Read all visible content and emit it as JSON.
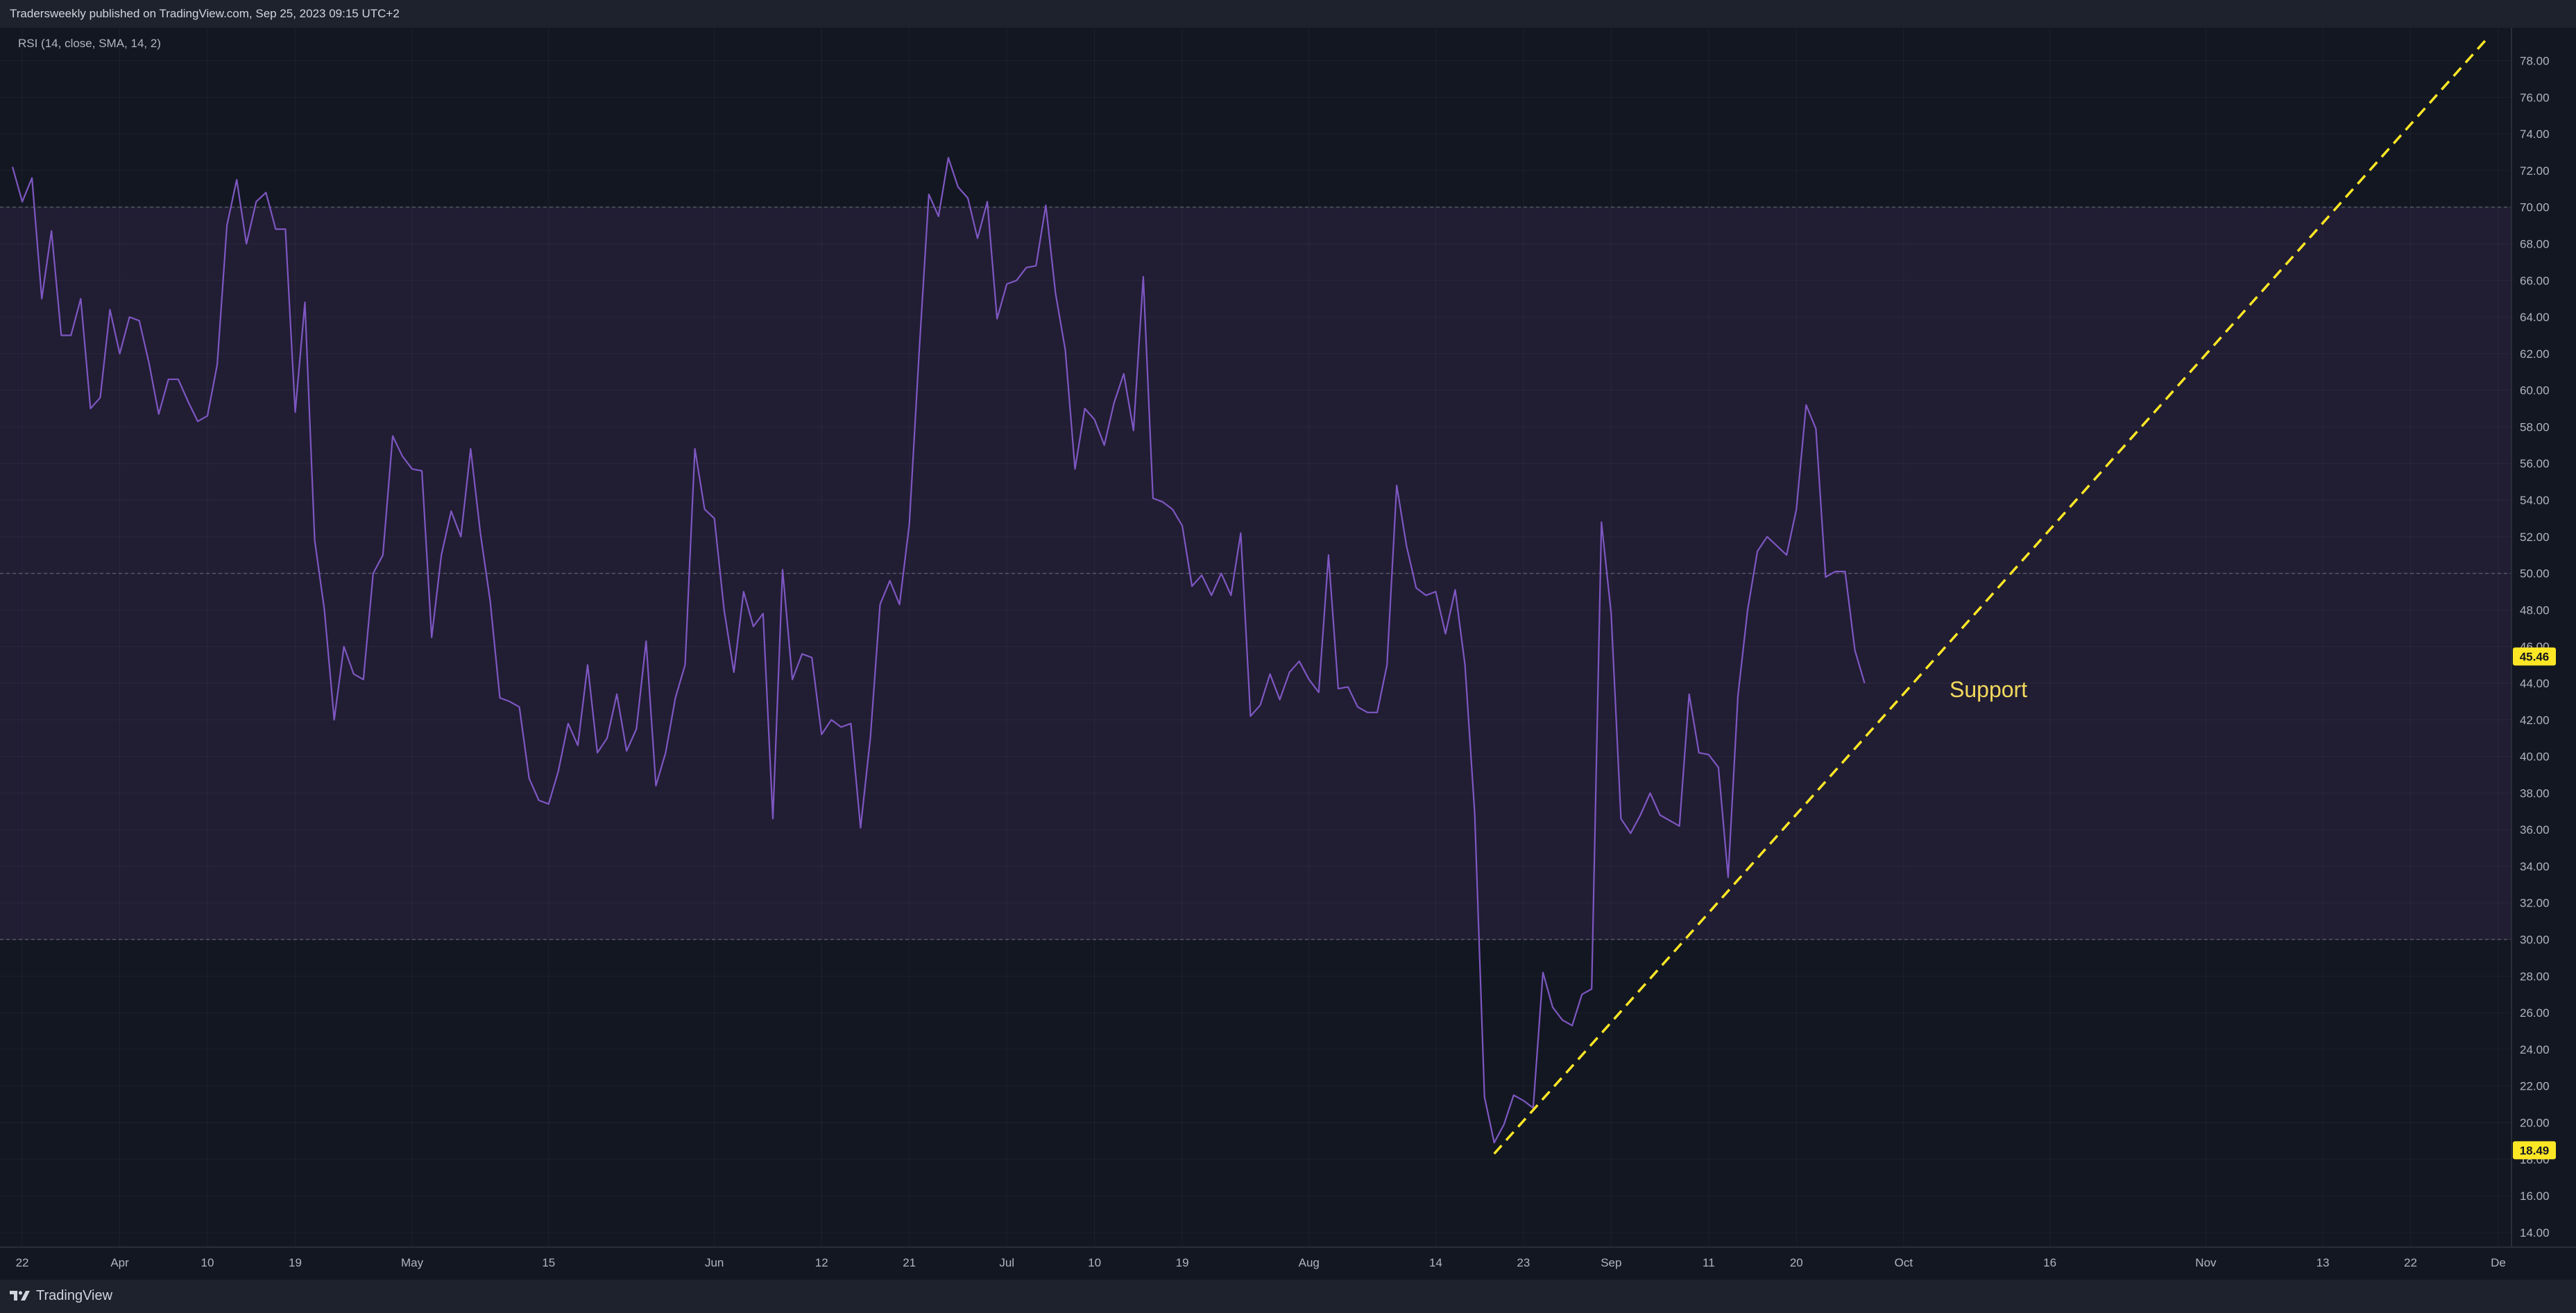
{
  "header": {
    "publish_info": "Tradersweekly published on TradingView.com, Sep 25, 2023 09:15 UTC+2"
  },
  "footer": {
    "brand": "TradingView",
    "logo_icon": "tradingview-logo-icon"
  },
  "colors": {
    "background": "#131722",
    "band_fill": "#211d33",
    "rsi_line": "#7e57c2",
    "trendline": "#fde725",
    "axis_text": "#b2b5be",
    "price_label_bg": "#fde725"
  },
  "chart_data": {
    "type": "line",
    "title": "RSI (14, close, SMA, 14, 2)",
    "y_axis": {
      "min": 13.2,
      "max": 79.8,
      "ticks": [
        "78.00",
        "76.00",
        "74.00",
        "72.00",
        "70.00",
        "68.00",
        "66.00",
        "64.00",
        "62.00",
        "60.00",
        "58.00",
        "56.00",
        "54.00",
        "52.00",
        "50.00",
        "48.00",
        "46.00",
        "44.00",
        "42.00",
        "40.00",
        "38.00",
        "36.00",
        "34.00",
        "32.00",
        "30.00",
        "28.00",
        "26.00",
        "24.00",
        "22.00",
        "20.00",
        "18.00",
        "16.00",
        "14.00"
      ]
    },
    "x_axis": {
      "start_date": "2023-03-21",
      "end_date": "2023-12-02",
      "ticks": [
        {
          "label": "22",
          "date": "2023-03-22"
        },
        {
          "label": "Apr",
          "date": "2023-04-01"
        },
        {
          "label": "10",
          "date": "2023-04-10"
        },
        {
          "label": "19",
          "date": "2023-04-19"
        },
        {
          "label": "May",
          "date": "2023-05-01"
        },
        {
          "label": "15",
          "date": "2023-05-15"
        },
        {
          "label": "Jun",
          "date": "2023-06-01"
        },
        {
          "label": "12",
          "date": "2023-06-12"
        },
        {
          "label": "21",
          "date": "2023-06-21"
        },
        {
          "label": "Jul",
          "date": "2023-07-01"
        },
        {
          "label": "10",
          "date": "2023-07-10"
        },
        {
          "label": "19",
          "date": "2023-07-19"
        },
        {
          "label": "Aug",
          "date": "2023-08-01"
        },
        {
          "label": "14",
          "date": "2023-08-14"
        },
        {
          "label": "23",
          "date": "2023-08-23"
        },
        {
          "label": "Sep",
          "date": "2023-09-01"
        },
        {
          "label": "11",
          "date": "2023-09-11"
        },
        {
          "label": "20",
          "date": "2023-09-20"
        },
        {
          "label": "Oct",
          "date": "2023-10-01"
        },
        {
          "label": "16",
          "date": "2023-10-16"
        },
        {
          "label": "Nov",
          "date": "2023-11-01"
        },
        {
          "label": "13",
          "date": "2023-11-13"
        },
        {
          "label": "22",
          "date": "2023-11-22"
        },
        {
          "label": "De",
          "date": "2023-12-01"
        }
      ]
    },
    "grid": true,
    "bands": {
      "upper": 70,
      "middle": 50,
      "lower": 30
    },
    "series": [
      {
        "name": "RSI",
        "points": [
          [
            "2023-03-21",
            72.2
          ],
          [
            "2023-03-22",
            70.3
          ],
          [
            "2023-03-23",
            71.6
          ],
          [
            "2023-03-24",
            65.0
          ],
          [
            "2023-03-25",
            68.7
          ],
          [
            "2023-03-26",
            63.0
          ],
          [
            "2023-03-27",
            63.0
          ],
          [
            "2023-03-28",
            65.0
          ],
          [
            "2023-03-29",
            59.0
          ],
          [
            "2023-03-30",
            59.6
          ],
          [
            "2023-03-31",
            64.4
          ],
          [
            "2023-04-01",
            62.0
          ],
          [
            "2023-04-02",
            64.0
          ],
          [
            "2023-04-03",
            63.8
          ],
          [
            "2023-04-04",
            61.5
          ],
          [
            "2023-04-05",
            58.7
          ],
          [
            "2023-04-06",
            60.6
          ],
          [
            "2023-04-07",
            60.6
          ],
          [
            "2023-04-08",
            59.4
          ],
          [
            "2023-04-09",
            58.3
          ],
          [
            "2023-04-10",
            58.6
          ],
          [
            "2023-04-11",
            61.4
          ],
          [
            "2023-04-12",
            69.0
          ],
          [
            "2023-04-13",
            71.5
          ],
          [
            "2023-04-14",
            68.0
          ],
          [
            "2023-04-15",
            70.3
          ],
          [
            "2023-04-16",
            70.8
          ],
          [
            "2023-04-17",
            68.8
          ],
          [
            "2023-04-18",
            68.8
          ],
          [
            "2023-04-19",
            58.8
          ],
          [
            "2023-04-20",
            64.8
          ],
          [
            "2023-04-21",
            51.8
          ],
          [
            "2023-04-22",
            48.0
          ],
          [
            "2023-04-23",
            42.0
          ],
          [
            "2023-04-24",
            46.0
          ],
          [
            "2023-04-25",
            44.5
          ],
          [
            "2023-04-26",
            44.2
          ],
          [
            "2023-04-27",
            50.0
          ],
          [
            "2023-04-28",
            51.0
          ],
          [
            "2023-04-29",
            57.5
          ],
          [
            "2023-04-30",
            56.4
          ],
          [
            "2023-05-01",
            55.7
          ],
          [
            "2023-05-02",
            55.6
          ],
          [
            "2023-05-03",
            46.5
          ],
          [
            "2023-05-04",
            51.0
          ],
          [
            "2023-05-05",
            53.4
          ],
          [
            "2023-05-06",
            52.0
          ],
          [
            "2023-05-07",
            56.8
          ],
          [
            "2023-05-08",
            52.2
          ],
          [
            "2023-05-09",
            48.5
          ],
          [
            "2023-05-10",
            43.2
          ],
          [
            "2023-05-11",
            43.0
          ],
          [
            "2023-05-12",
            42.7
          ],
          [
            "2023-05-13",
            38.8
          ],
          [
            "2023-05-14",
            37.6
          ],
          [
            "2023-05-15",
            37.4
          ],
          [
            "2023-05-16",
            39.2
          ],
          [
            "2023-05-17",
            41.8
          ],
          [
            "2023-05-18",
            40.6
          ],
          [
            "2023-05-19",
            45.0
          ],
          [
            "2023-05-20",
            40.2
          ],
          [
            "2023-05-21",
            41.0
          ],
          [
            "2023-05-22",
            43.4
          ],
          [
            "2023-05-23",
            40.3
          ],
          [
            "2023-05-24",
            41.5
          ],
          [
            "2023-05-25",
            46.3
          ],
          [
            "2023-05-26",
            38.4
          ],
          [
            "2023-05-27",
            40.2
          ],
          [
            "2023-05-28",
            43.2
          ],
          [
            "2023-05-29",
            45.0
          ],
          [
            "2023-05-30",
            56.8
          ],
          [
            "2023-05-31",
            53.5
          ],
          [
            "2023-06-01",
            53.0
          ],
          [
            "2023-06-02",
            48.0
          ],
          [
            "2023-06-03",
            44.6
          ],
          [
            "2023-06-04",
            49.0
          ],
          [
            "2023-06-05",
            47.1
          ],
          [
            "2023-06-06",
            47.8
          ],
          [
            "2023-06-07",
            36.6
          ],
          [
            "2023-06-08",
            50.2
          ],
          [
            "2023-06-09",
            44.2
          ],
          [
            "2023-06-10",
            45.6
          ],
          [
            "2023-06-11",
            45.4
          ],
          [
            "2023-06-12",
            41.2
          ],
          [
            "2023-06-13",
            42.0
          ],
          [
            "2023-06-14",
            41.6
          ],
          [
            "2023-06-15",
            41.8
          ],
          [
            "2023-06-16",
            36.1
          ],
          [
            "2023-06-17",
            41.0
          ],
          [
            "2023-06-18",
            48.3
          ],
          [
            "2023-06-19",
            49.6
          ],
          [
            "2023-06-20",
            48.3
          ],
          [
            "2023-06-21",
            52.7
          ],
          [
            "2023-06-22",
            62.0
          ],
          [
            "2023-06-23",
            70.7
          ],
          [
            "2023-06-24",
            69.5
          ],
          [
            "2023-06-25",
            72.7
          ],
          [
            "2023-06-26",
            71.1
          ],
          [
            "2023-06-27",
            70.5
          ],
          [
            "2023-06-28",
            68.3
          ],
          [
            "2023-06-29",
            70.3
          ],
          [
            "2023-06-30",
            63.9
          ],
          [
            "2023-07-01",
            65.8
          ],
          [
            "2023-07-02",
            66.0
          ],
          [
            "2023-07-03",
            66.7
          ],
          [
            "2023-07-04",
            66.8
          ],
          [
            "2023-07-05",
            70.1
          ],
          [
            "2023-07-06",
            65.3
          ],
          [
            "2023-07-07",
            62.2
          ],
          [
            "2023-07-08",
            55.7
          ],
          [
            "2023-07-09",
            59.0
          ],
          [
            "2023-07-10",
            58.4
          ],
          [
            "2023-07-11",
            57.0
          ],
          [
            "2023-07-12",
            59.3
          ],
          [
            "2023-07-13",
            60.9
          ],
          [
            "2023-07-14",
            57.8
          ],
          [
            "2023-07-15",
            66.2
          ],
          [
            "2023-07-16",
            54.1
          ],
          [
            "2023-07-17",
            53.9
          ],
          [
            "2023-07-18",
            53.5
          ],
          [
            "2023-07-19",
            52.6
          ],
          [
            "2023-07-20",
            49.3
          ],
          [
            "2023-07-21",
            49.9
          ],
          [
            "2023-07-22",
            48.8
          ],
          [
            "2023-07-23",
            50.0
          ],
          [
            "2023-07-24",
            48.8
          ],
          [
            "2023-07-25",
            52.2
          ],
          [
            "2023-07-26",
            42.2
          ],
          [
            "2023-07-27",
            42.8
          ],
          [
            "2023-07-28",
            44.5
          ],
          [
            "2023-07-29",
            43.1
          ],
          [
            "2023-07-30",
            44.6
          ],
          [
            "2023-07-31",
            45.2
          ],
          [
            "2023-08-01",
            44.2
          ],
          [
            "2023-08-02",
            43.5
          ],
          [
            "2023-08-03",
            51.0
          ],
          [
            "2023-08-04",
            43.7
          ],
          [
            "2023-08-05",
            43.8
          ],
          [
            "2023-08-06",
            42.7
          ],
          [
            "2023-08-07",
            42.4
          ],
          [
            "2023-08-08",
            42.4
          ],
          [
            "2023-08-09",
            45.0
          ],
          [
            "2023-08-10",
            54.8
          ],
          [
            "2023-08-11",
            51.5
          ],
          [
            "2023-08-12",
            49.2
          ],
          [
            "2023-08-13",
            48.8
          ],
          [
            "2023-08-14",
            49.0
          ],
          [
            "2023-08-15",
            46.7
          ],
          [
            "2023-08-16",
            49.1
          ],
          [
            "2023-08-17",
            45.0
          ],
          [
            "2023-08-18",
            36.9
          ],
          [
            "2023-08-19",
            21.4
          ],
          [
            "2023-08-20",
            18.9
          ],
          [
            "2023-08-21",
            19.9
          ],
          [
            "2023-08-22",
            21.5
          ],
          [
            "2023-08-23",
            21.2
          ],
          [
            "2023-08-24",
            20.8
          ],
          [
            "2023-08-25",
            28.2
          ],
          [
            "2023-08-26",
            26.3
          ],
          [
            "2023-08-27",
            25.6
          ],
          [
            "2023-08-28",
            25.3
          ],
          [
            "2023-08-29",
            27.0
          ],
          [
            "2023-08-30",
            27.3
          ],
          [
            "2023-08-31",
            52.8
          ],
          [
            "2023-09-01",
            47.8
          ],
          [
            "2023-09-02",
            36.6
          ],
          [
            "2023-09-03",
            35.8
          ],
          [
            "2023-09-04",
            36.8
          ],
          [
            "2023-09-05",
            38.0
          ],
          [
            "2023-09-06",
            36.8
          ],
          [
            "2023-09-07",
            36.5
          ],
          [
            "2023-09-08",
            36.2
          ],
          [
            "2023-09-09",
            43.4
          ],
          [
            "2023-09-10",
            40.2
          ],
          [
            "2023-09-11",
            40.1
          ],
          [
            "2023-09-12",
            39.4
          ],
          [
            "2023-09-13",
            33.4
          ],
          [
            "2023-09-14",
            43.3
          ],
          [
            "2023-09-15",
            48.0
          ],
          [
            "2023-09-16",
            51.2
          ],
          [
            "2023-09-17",
            52.0
          ],
          [
            "2023-09-18",
            51.5
          ],
          [
            "2023-09-19",
            51.0
          ],
          [
            "2023-09-20",
            53.5
          ],
          [
            "2023-09-21",
            59.2
          ],
          [
            "2023-09-22",
            57.9
          ],
          [
            "2023-09-23",
            49.8
          ],
          [
            "2023-09-24",
            50.1
          ],
          [
            "2023-09-25",
            50.1
          ],
          [
            "2023-09-26",
            45.8
          ],
          [
            "2023-09-27",
            44.0
          ]
        ]
      }
    ],
    "trendline": {
      "label": "Support",
      "style": "dashed",
      "from": {
        "date": "2023-08-20",
        "value": 18.3
      },
      "to": {
        "date": "2023-11-30",
        "value": 79.3
      }
    },
    "price_labels": [
      {
        "value": "45.46",
        "at": 45.46
      },
      {
        "value": "18.49",
        "at": 18.49
      }
    ]
  }
}
